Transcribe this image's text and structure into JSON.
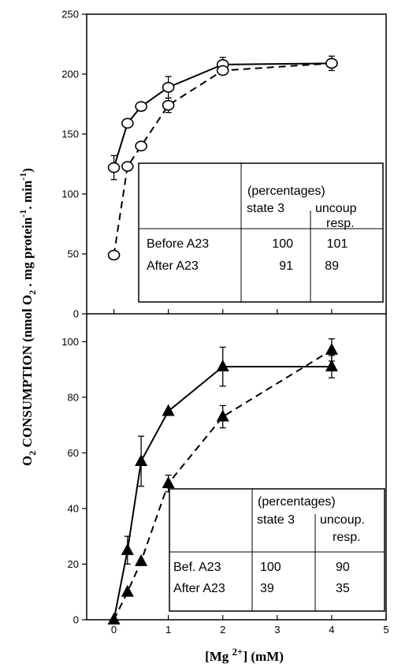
{
  "chart_data": [
    {
      "type": "line",
      "panel": "top",
      "ylim": [
        0,
        250
      ],
      "xlim": [
        -0.5,
        5
      ],
      "yticks": [
        0,
        50,
        100,
        150,
        200,
        250
      ],
      "grid": false,
      "series": [
        {
          "style": "solid",
          "marker": "open-circle",
          "x": [
            0,
            0.25,
            0.5,
            1,
            2,
            4
          ],
          "y": [
            122,
            159,
            173,
            189,
            208,
            209
          ],
          "err": [
            10,
            0,
            0,
            9,
            6,
            6
          ]
        },
        {
          "style": "dashed",
          "marker": "open-circle",
          "x": [
            0,
            0.25,
            0.5,
            1,
            2,
            4
          ],
          "y": [
            49,
            123,
            140,
            174,
            203,
            209
          ],
          "err": [
            0,
            0,
            0,
            6,
            0,
            0
          ]
        }
      ],
      "table": {
        "header_top": "(percentages)",
        "col1": "state 3",
        "col2_line1": "uncoup",
        "col2_line2": "resp.",
        "rows": [
          {
            "label": "Before A23",
            "v1": "100",
            "v2": "101"
          },
          {
            "label": "After A23",
            "v1": "91",
            "v2": "89"
          }
        ]
      }
    },
    {
      "type": "line",
      "panel": "bottom",
      "ylim": [
        0,
        110
      ],
      "xlim": [
        -0.5,
        5
      ],
      "xticks": [
        0,
        1,
        2,
        3,
        4,
        5
      ],
      "yticks": [
        0,
        20,
        40,
        60,
        80,
        100
      ],
      "grid": false,
      "series": [
        {
          "style": "solid",
          "marker": "filled-triangle",
          "x": [
            0,
            0.25,
            0.5,
            1,
            2,
            4
          ],
          "y": [
            0,
            25,
            57,
            75,
            91,
            91
          ],
          "err": [
            0,
            5,
            9,
            0,
            7,
            4
          ]
        },
        {
          "style": "dashed",
          "marker": "filled-triangle",
          "x": [
            0,
            0.25,
            0.5,
            1,
            2,
            4
          ],
          "y": [
            0,
            10,
            21,
            49,
            73,
            97
          ],
          "err": [
            0,
            0,
            0,
            3,
            4,
            4
          ]
        }
      ],
      "table": {
        "header_top": "(percentages)",
        "col1": "state 3",
        "col2_line1": "uncoup.",
        "col2_line2": "resp.",
        "rows": [
          {
            "label": "Bef. A23",
            "v1": "100",
            "v2": "90"
          },
          {
            "label": "After A23",
            "v1": "39",
            "v2": "35"
          }
        ]
      }
    }
  ],
  "axes": {
    "ylabel": "CONSUMPTION (nmol O2 . mg protein-1. min-1)",
    "ylabel_prefix": "O",
    "ylabel_prefix_sub": "2",
    "ylabel_main": " CONSUMPTION (nmol O",
    "ylabel_main_sub": "2",
    "ylabel_mid": " . mg protein",
    "ylabel_sup": "-1",
    "ylabel_end": ". min",
    "ylabel_sup2": "-1",
    "ylabel_close": ")",
    "xlabel_open": "[Mg ",
    "xlabel_sup": "2+",
    "xlabel_close": "] (mM)"
  }
}
